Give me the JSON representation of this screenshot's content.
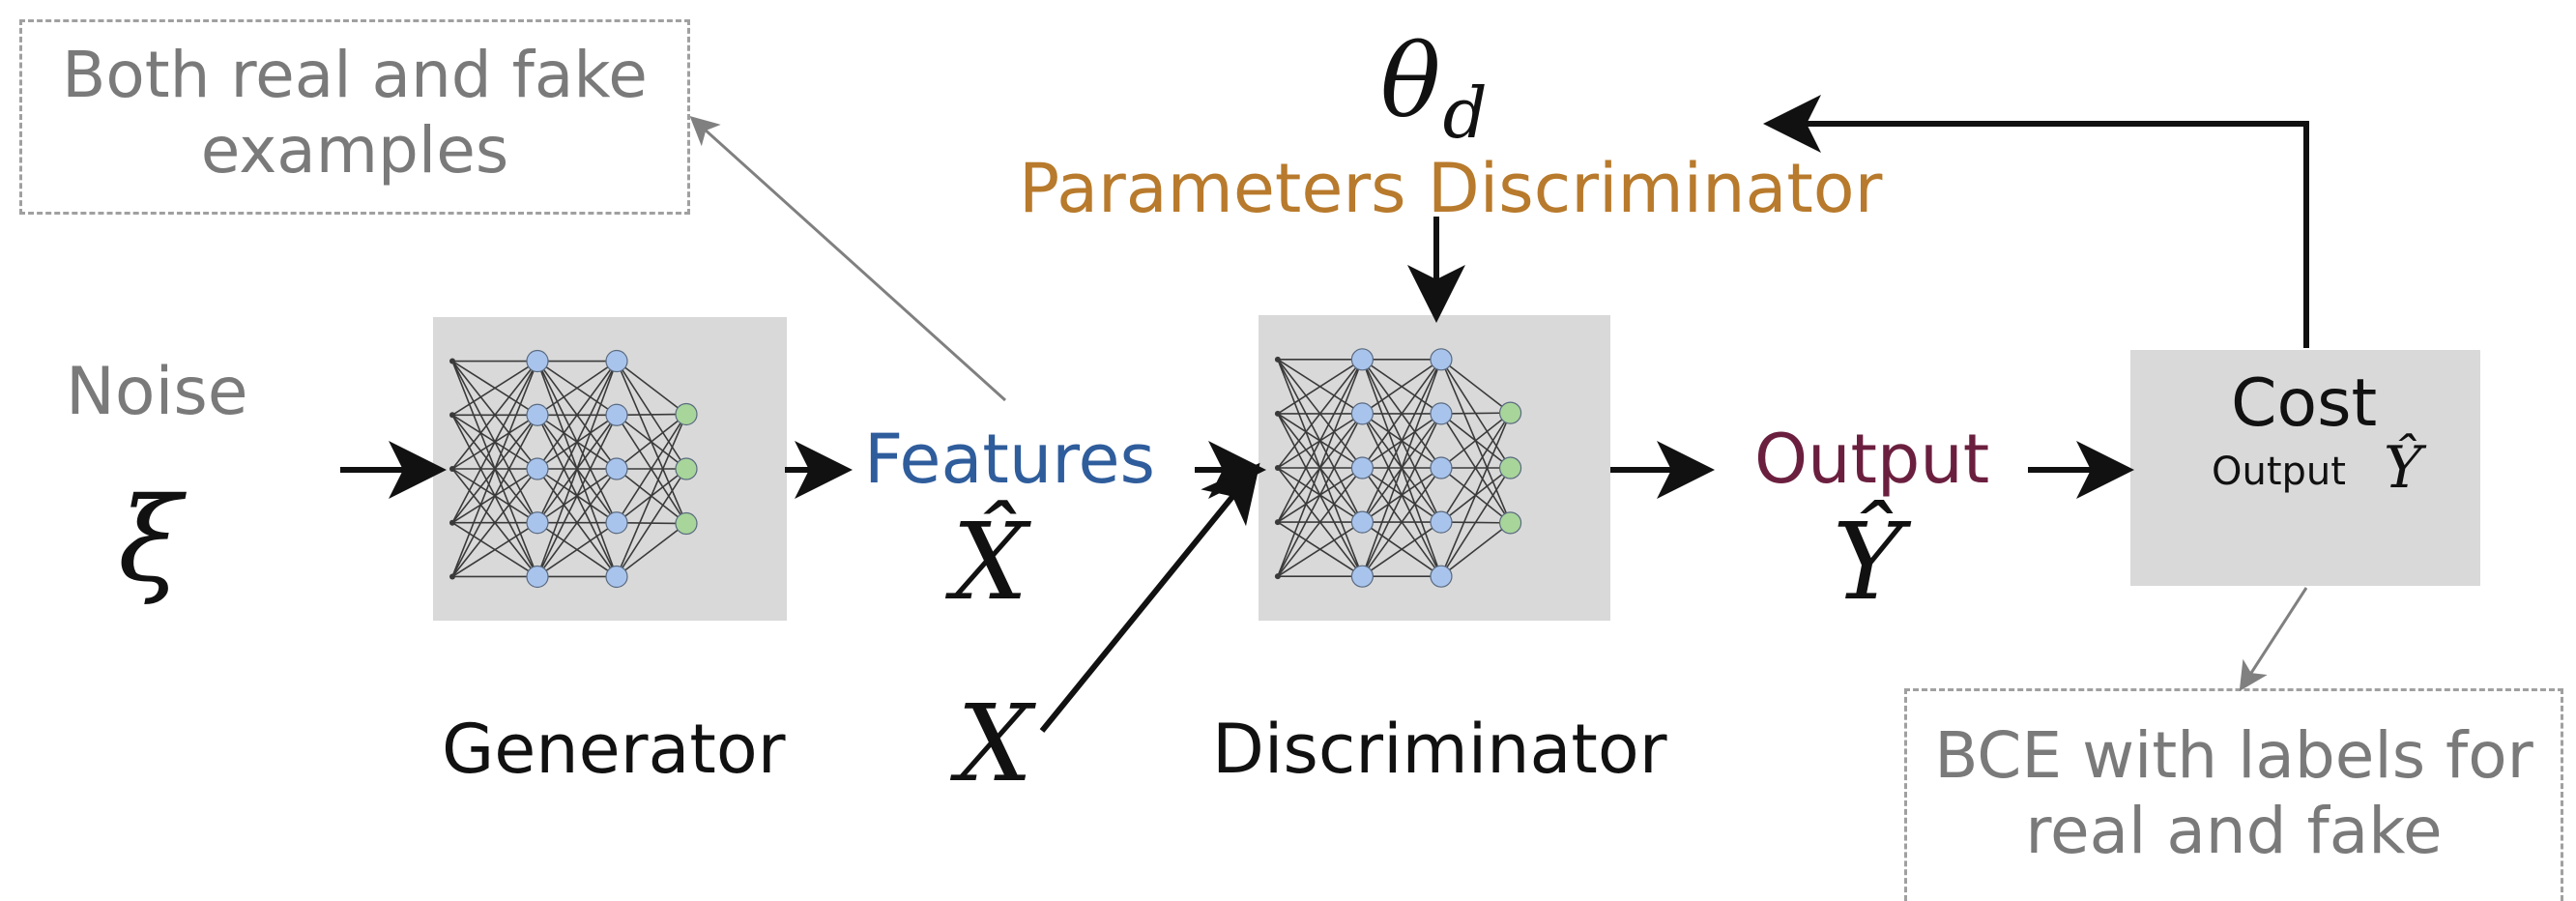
{
  "callouts": {
    "top_left": "Both real and fake examples",
    "bottom_right": "BCE with labels for real and fake"
  },
  "labels": {
    "noise": "Noise",
    "noise_symbol": "ξ",
    "features": "Features",
    "features_symbol": "X̂",
    "real_symbol": "X",
    "generator": "Generator",
    "discriminator": "Discriminator",
    "theta_symbol": "θ",
    "theta_subscript": "d",
    "parameters": "Parameters Discriminator",
    "output": "Output",
    "output_symbol": "Ŷ",
    "cost_title": "Cost",
    "cost_output_label": "Output",
    "cost_output_symbol": "Ŷ"
  },
  "colors": {
    "features": "#2f5d9c",
    "parameters": "#b87a2c",
    "output": "#6b1f3f",
    "callout_text": "#7a7a7a",
    "box_fill": "#d9d9d9",
    "node_blue": "#a9c4ec",
    "node_green": "#a8d59a"
  },
  "networks": {
    "layer_sizes": [
      5,
      5,
      5,
      3
    ]
  }
}
